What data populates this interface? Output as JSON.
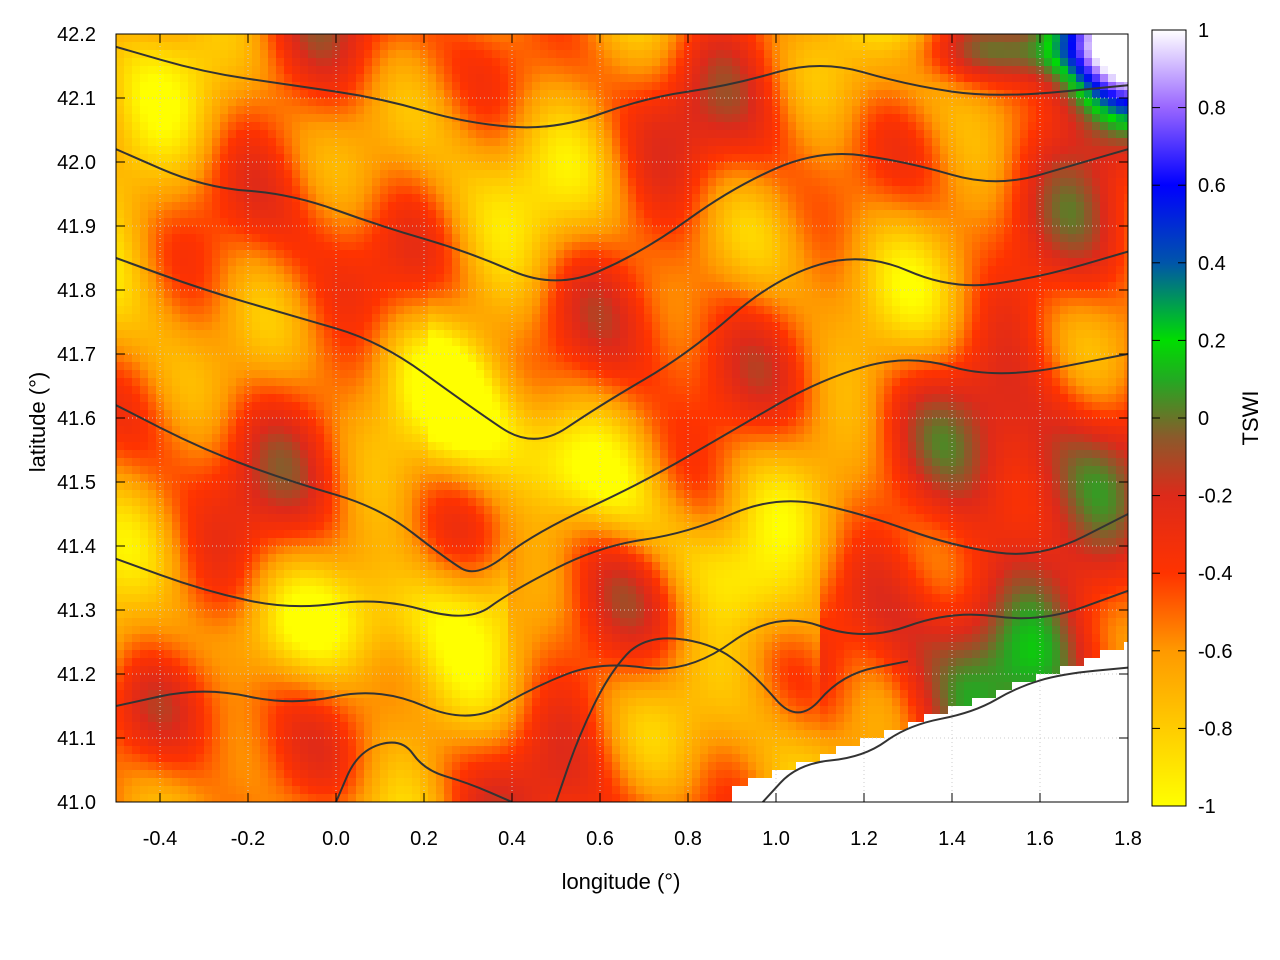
{
  "chart_data": {
    "type": "heatmap",
    "title": "",
    "xlabel": "longitude (°)",
    "ylabel": "latitude (°)",
    "colorbar_label": "TSWI",
    "xlim": [
      -0.5,
      1.8
    ],
    "ylim": [
      41.0,
      42.2
    ],
    "clim": [
      -1,
      1
    ],
    "x_ticks": [
      "-0.4",
      "-0.2",
      "0.0",
      "0.2",
      "0.4",
      "0.6",
      "0.8",
      "1.0",
      "1.2",
      "1.4",
      "1.6",
      "1.8"
    ],
    "x_tick_values": [
      -0.4,
      -0.2,
      0.0,
      0.2,
      0.4,
      0.6,
      0.8,
      1.0,
      1.2,
      1.4,
      1.6,
      1.8
    ],
    "y_ticks": [
      "41.0",
      "41.1",
      "41.2",
      "41.3",
      "41.4",
      "41.5",
      "41.6",
      "41.7",
      "41.8",
      "41.9",
      "42.0",
      "42.1",
      "42.2"
    ],
    "y_tick_values": [
      41.0,
      41.1,
      41.2,
      41.3,
      41.4,
      41.5,
      41.6,
      41.7,
      41.8,
      41.9,
      42.0,
      42.1,
      42.2
    ],
    "colorbar_ticks": [
      "1",
      "0.8",
      "0.6",
      "0.4",
      "0.2",
      "0",
      "-0.2",
      "-0.4",
      "-0.6",
      "-0.8",
      "-1"
    ],
    "colorbar_tick_values": [
      1,
      0.8,
      0.6,
      0.4,
      0.2,
      0,
      -0.2,
      -0.4,
      -0.6,
      -0.8,
      -1
    ],
    "colormap": [
      {
        "v": -1.0,
        "color": "#ffff00"
      },
      {
        "v": -0.8,
        "color": "#ffcc00"
      },
      {
        "v": -0.6,
        "color": "#ff9900"
      },
      {
        "v": -0.4,
        "color": "#ff3300"
      },
      {
        "v": -0.2,
        "color": "#dd2a1a"
      },
      {
        "v": -0.05,
        "color": "#8b5a2b"
      },
      {
        "v": 0.1,
        "color": "#22aa22"
      },
      {
        "v": 0.2,
        "color": "#00dd00"
      },
      {
        "v": 0.4,
        "color": "#0055aa"
      },
      {
        "v": 0.6,
        "color": "#0000ff"
      },
      {
        "v": 0.8,
        "color": "#9966ff"
      },
      {
        "v": 1.0,
        "color": "#ffffff"
      }
    ],
    "grid": true,
    "grid_style": "dotted",
    "contour_color": "#333333",
    "nodata_color": "#ffffff"
  }
}
